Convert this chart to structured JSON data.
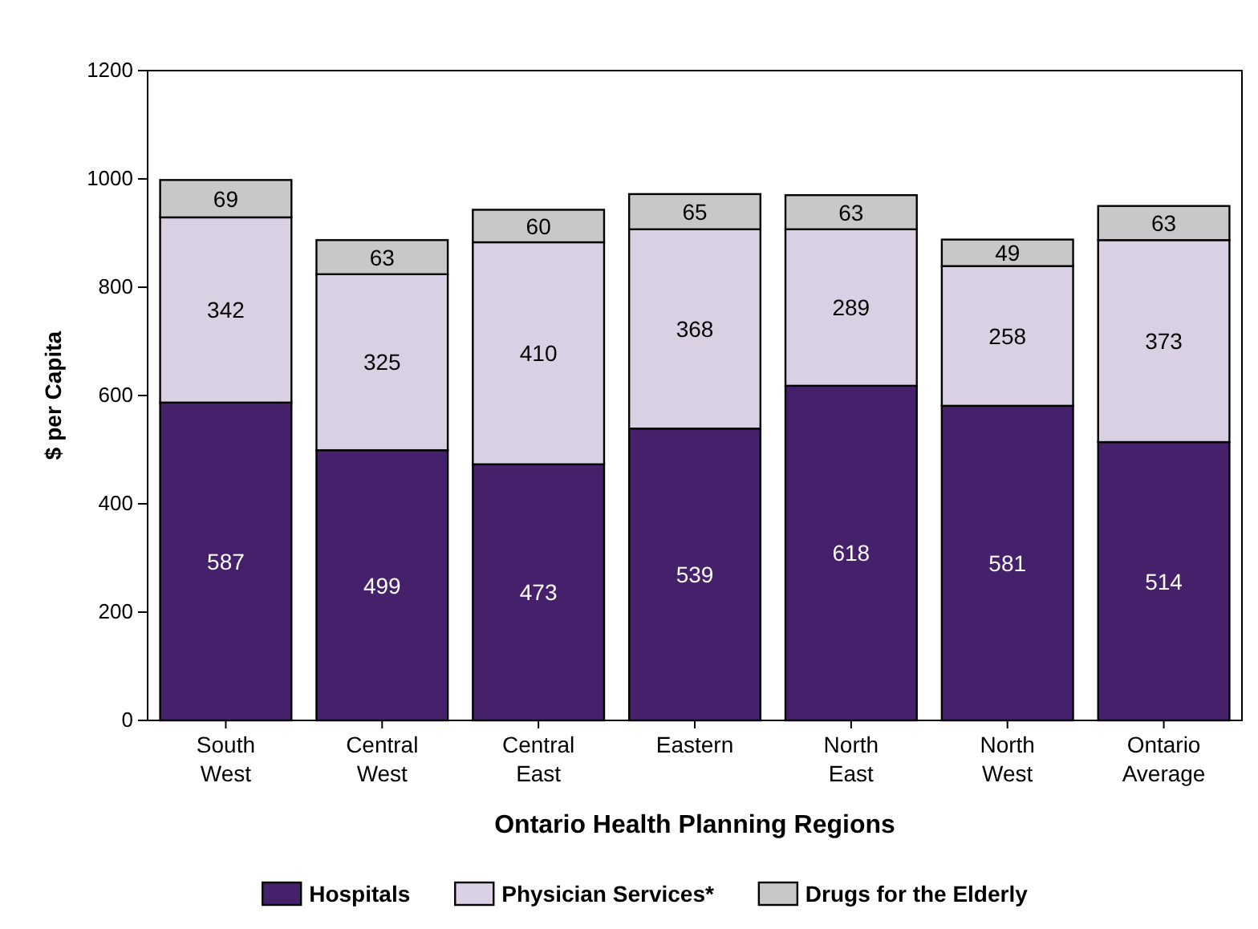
{
  "chart_data": {
    "type": "bar",
    "stacked": true,
    "xlabel": "Ontario Health Planning Regions",
    "ylabel": "$ per Capita",
    "categories": [
      "South West",
      "Central West",
      "Central East",
      "Eastern",
      "North East",
      "North West",
      "Ontario Average"
    ],
    "series": [
      {
        "name": "Hospitals",
        "color": "#46216b",
        "values": [
          587,
          499,
          473,
          539,
          618,
          581,
          514
        ]
      },
      {
        "name": "Physician Services*",
        "color": "#d9d0e3",
        "values": [
          342,
          325,
          410,
          368,
          289,
          258,
          373
        ]
      },
      {
        "name": "Drugs for the Elderly",
        "color": "#c8c8c8",
        "values": [
          69,
          63,
          60,
          65,
          63,
          49,
          63
        ]
      }
    ],
    "ylim": [
      0,
      1200
    ],
    "yticks": [
      0,
      200,
      400,
      600,
      800,
      1000,
      1200
    ],
    "grid": false,
    "legend": "bottom",
    "data_labels": true
  }
}
